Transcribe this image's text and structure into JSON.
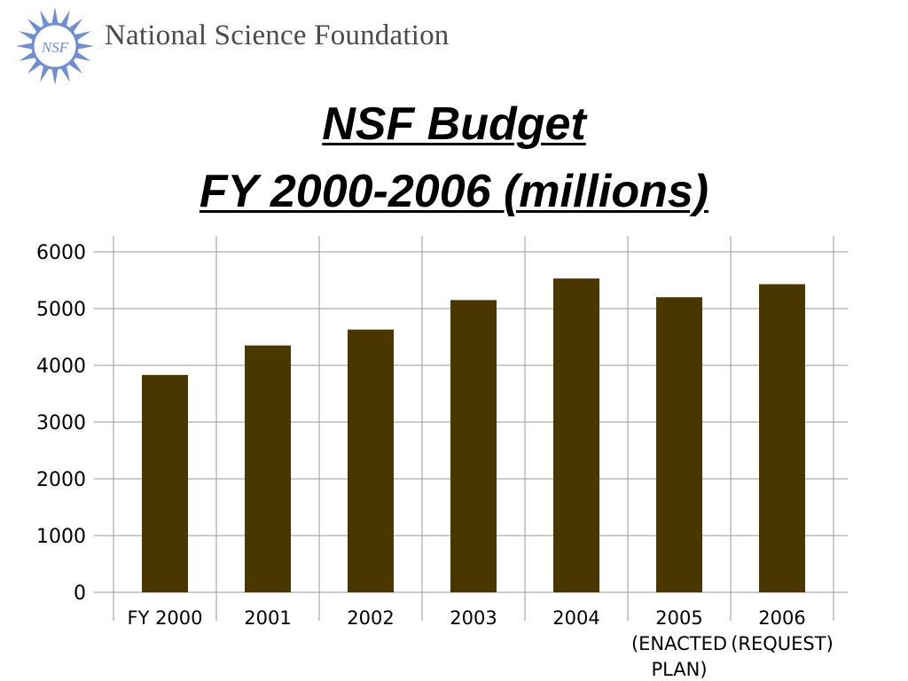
{
  "header": {
    "logo_text": "NSF",
    "org_name": "National Science Foundation"
  },
  "colors": {
    "bar": "#4a3700",
    "grid": "#9a9a9a",
    "logo": "#6f8fd2"
  },
  "chart_data": {
    "type": "bar",
    "title": [
      "NSF Budget",
      "FY 2000-2006 (millions)"
    ],
    "categories": [
      [
        "FY 2000"
      ],
      [
        "2001"
      ],
      [
        "2002"
      ],
      [
        "2003"
      ],
      [
        "2004"
      ],
      [
        "2005",
        "(ENACTED",
        "PLAN)"
      ],
      [
        "2006",
        "(REQUEST)"
      ]
    ],
    "values": [
      3830,
      4350,
      4630,
      5150,
      5530,
      5200,
      5430
    ],
    "yticks": [
      "0",
      "1000",
      "2000",
      "3000",
      "4000",
      "5000",
      "6000"
    ],
    "ylim": [
      0,
      6000
    ],
    "grid": true,
    "legend": false
  }
}
